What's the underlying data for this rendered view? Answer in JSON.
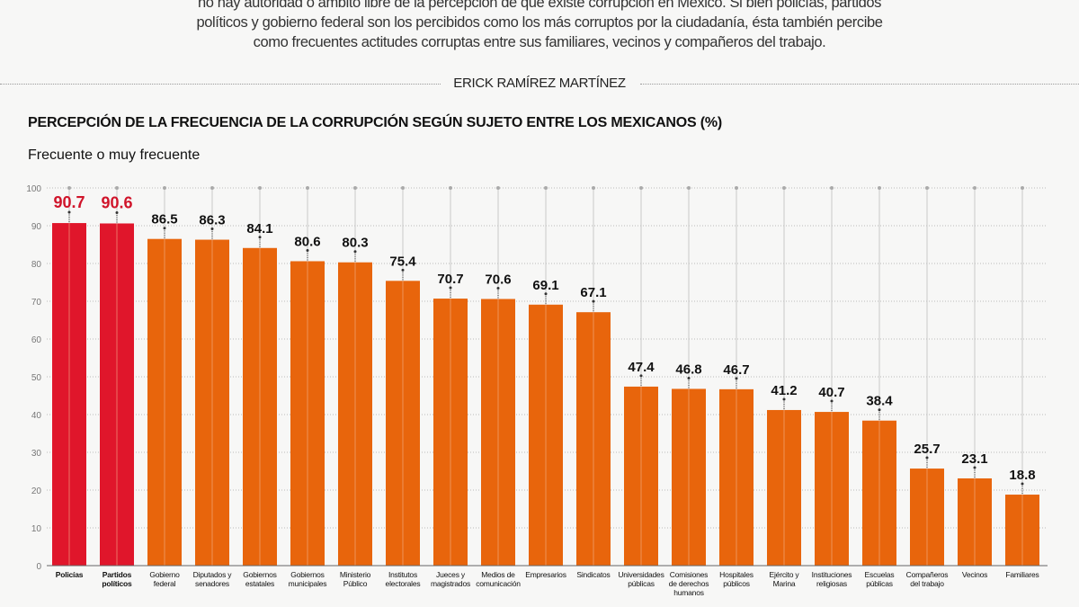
{
  "intro": {
    "lines": [
      "no hay autoridad o ámbito libre de la percepción de que existe corrupción en México. Si bien policías, partidos",
      "políticos y gobierno federal son los percibidos como los más corruptos por la ciudadanía, ésta también percibe",
      "como frecuentes actitudes corruptas entre sus familiares, vecinos y compañeros del trabajo."
    ]
  },
  "author": "ERICK RAMÍREZ MARTÍNEZ",
  "colors": {
    "highlight": "#e0162b",
    "bar": "#e8650c",
    "highlight_label": "#d0142a",
    "label": "#111111"
  },
  "chart_data": {
    "type": "bar",
    "title": "PERCEPCIÓN DE LA FRECUENCIA DE LA CORRUPCIÓN SEGÚN SUJETO ENTRE LOS MEXICANOS (%)",
    "subtitle": "Frecuente o muy frecuente",
    "ylim": [
      0,
      100
    ],
    "yticks": [
      0,
      10,
      20,
      30,
      40,
      50,
      60,
      70,
      80,
      90,
      100
    ],
    "grid": true,
    "categories": [
      "Policías",
      "Partidos políticos",
      "Gobierno federal",
      "Diputados y senadores",
      "Gobiernos estatales",
      "Gobiernos municipales",
      "Ministerio Público",
      "Institutos electorales",
      "Jueces y magistrados",
      "Medios de comunicación",
      "Empresarios",
      "Sindicatos",
      "Universidades públicas",
      "Comisiones de derechos humanos",
      "Hospitales públicos",
      "Ejército y Marina",
      "Instituciones religiosas",
      "Escuelas públicas",
      "Compañeros del trabajo",
      "Vecinos",
      "Familiares"
    ],
    "values": [
      90.7,
      90.6,
      86.5,
      86.3,
      84.1,
      80.6,
      80.3,
      75.4,
      70.7,
      70.6,
      69.1,
      67.1,
      47.4,
      46.8,
      46.7,
      41.2,
      40.7,
      38.4,
      25.7,
      23.1,
      18.8
    ],
    "highlighted": [
      0,
      1
    ]
  }
}
